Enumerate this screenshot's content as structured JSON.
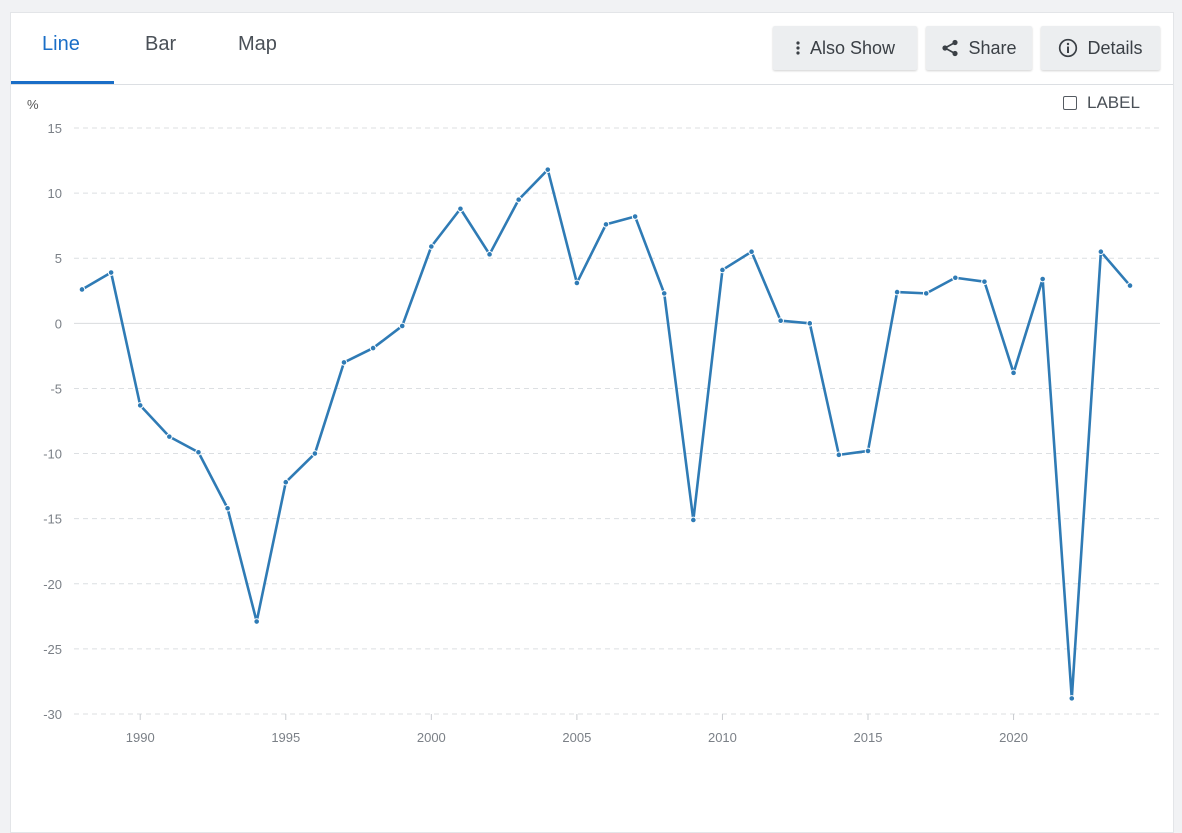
{
  "tabs": [
    {
      "label": "Line",
      "active": true
    },
    {
      "label": "Bar",
      "active": false
    },
    {
      "label": "Map",
      "active": false
    }
  ],
  "actions": {
    "also_show": "Also Show",
    "share": "Share",
    "details": "Details"
  },
  "label_toggle": {
    "text": "LABEL",
    "checked": false
  },
  "colors": {
    "accent": "#1a6ec7",
    "line": "#2f7bb5"
  },
  "chart_data": {
    "type": "line",
    "ylabel": "%",
    "ylim": [
      -30,
      15
    ],
    "yticks": [
      15,
      10,
      5,
      0,
      -5,
      -10,
      -15,
      -20,
      -25,
      -30
    ],
    "xlim": [
      1988,
      2024
    ],
    "xticks": [
      1990,
      1995,
      2000,
      2005,
      2010,
      2015,
      2020
    ],
    "grid": true,
    "series": [
      {
        "x": [
          1988,
          1989,
          1990,
          1991,
          1992,
          1993,
          1994,
          1995,
          1996,
          1997,
          1998,
          1999,
          2000,
          2001,
          2002,
          2003,
          2004,
          2005,
          2006,
          2007,
          2008,
          2009,
          2010,
          2011,
          2012,
          2013,
          2014,
          2015,
          2016,
          2017,
          2018,
          2019,
          2020,
          2021,
          2022,
          2023,
          2024
        ],
        "values": [
          2.6,
          3.9,
          -6.3,
          -8.7,
          -9.9,
          -14.2,
          -22.9,
          -12.2,
          -10.0,
          -3.0,
          -1.9,
          -0.2,
          5.9,
          8.8,
          5.3,
          9.5,
          11.8,
          3.1,
          7.6,
          8.2,
          2.3,
          -15.1,
          4.1,
          5.5,
          0.2,
          0.0,
          -10.1,
          -9.8,
          2.4,
          2.3,
          3.5,
          3.2,
          -3.8,
          3.4,
          -28.8,
          5.5,
          2.9
        ]
      }
    ]
  }
}
